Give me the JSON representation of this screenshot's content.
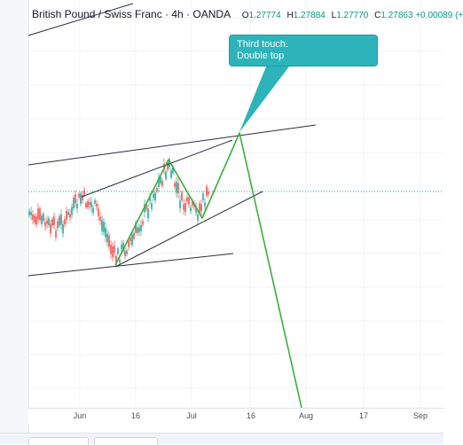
{
  "header": {
    "symbol": "British Pound / Swiss Franc · 4h · OANDA",
    "ohlc": [
      {
        "key": "O",
        "value": "1.27774"
      },
      {
        "key": "H",
        "value": "1.27884"
      },
      {
        "key": "L",
        "value": "1.27770"
      },
      {
        "key": "C",
        "value": "1.27863"
      }
    ],
    "change": "+0.00089 (+"
  },
  "callout": {
    "line1": "Third touch.",
    "line2": "Double top"
  },
  "time_axis": {
    "ticks": [
      {
        "label": "Jun"
      },
      {
        "label": "16"
      },
      {
        "label": "Jul"
      },
      {
        "label": "16"
      },
      {
        "label": "Aug"
      },
      {
        "label": "17"
      },
      {
        "label": "Sep"
      }
    ]
  },
  "colors": {
    "bull": "#26a69a",
    "bear": "#ef5350",
    "projection": "#3cae3c",
    "callout": "#2db3ba",
    "last_price_line": "#26a69a",
    "trendline": "#2a2e39"
  }
}
